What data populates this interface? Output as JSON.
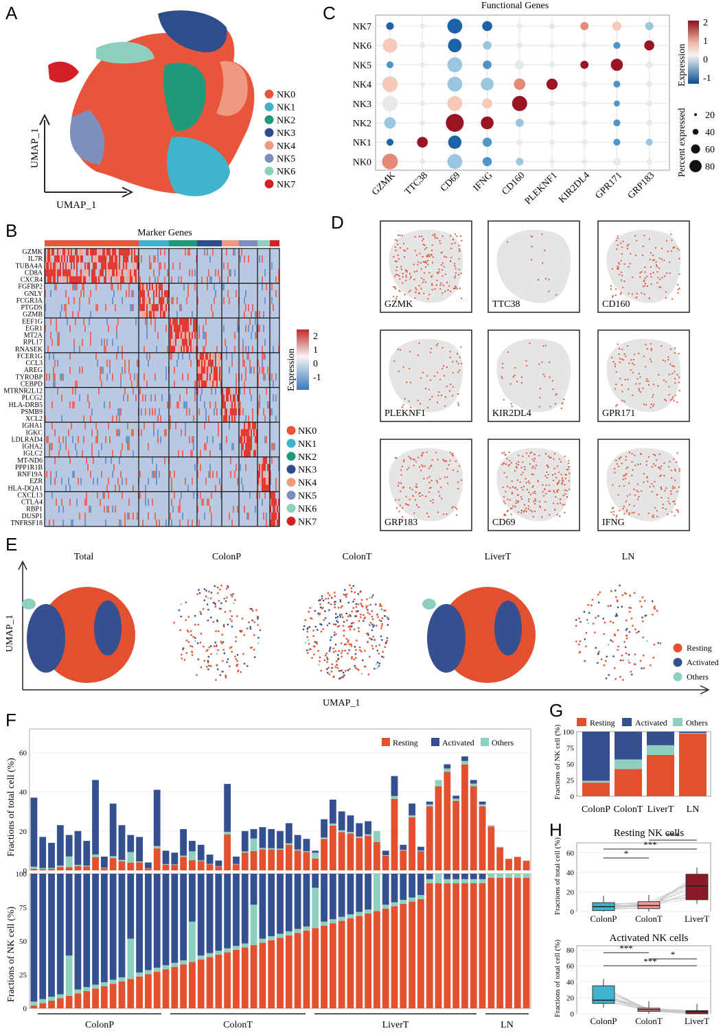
{
  "colors": {
    "NK0": "#e8553a",
    "NK1": "#3fb4cc",
    "NK2": "#1f9a7a",
    "NK3": "#2d4e8c",
    "NK4": "#ee9a80",
    "NK5": "#7c8fbf",
    "NK6": "#8dd0be",
    "NK7": "#d32026",
    "resting": "#e2502f",
    "activated": "#34508f",
    "others": "#8ed0c0"
  },
  "panels": {
    "A": "A",
    "B": "B",
    "C": "C",
    "D": "D",
    "E": "E",
    "F": "F",
    "G": "G",
    "H": "H"
  },
  "panelA": {
    "xlabel": "UMAP_1",
    "ylabel": "UMAP_1",
    "legend": [
      "NK0",
      "NK1",
      "NK2",
      "NK3",
      "NK4",
      "NK5",
      "NK6",
      "NK7"
    ]
  },
  "panelB": {
    "title": "Marker Genes",
    "genes": [
      "GZMK",
      "IL7R",
      "TUBA4A",
      "CD8A",
      "CXCR4",
      "FGFBP2",
      "GNLY",
      "FCGR3A",
      "PTGDS",
      "GZMB",
      "EEF1G",
      "EGR1",
      "MT2A",
      "RPL17",
      "RNASEK",
      "FCER1G",
      "CCL3",
      "AREG",
      "TYROBP",
      "CEBPD",
      "MTRNR2L12",
      "PLCG2",
      "HLA-DRB5",
      "PSMB9",
      "XCL2",
      "IGHA1",
      "IGKC",
      "LDLRAD4",
      "IGHA2",
      "IGLC2",
      "MT-ND6",
      "PPP1R1B",
      "RNF19A",
      "EZR",
      "HLA-DQA1",
      "CXCL13",
      "CTLA4",
      "RBP1",
      "DUSP1",
      "TNFRSF18"
    ],
    "cbar_title": "Expression",
    "cbar_ticks": [
      "2",
      "1",
      "0",
      "-1"
    ],
    "legend": [
      "NK0",
      "NK1",
      "NK2",
      "NK3",
      "NK4",
      "NK5",
      "NK6",
      "NK7"
    ]
  },
  "chart_data": [
    {
      "type": "scatter",
      "panel": "C",
      "title": "Functional Genes",
      "rows": [
        "NK7",
        "NK6",
        "NK5",
        "NK4",
        "NK3",
        "NK2",
        "NK1",
        "NK0"
      ],
      "genes": [
        "GZMK",
        "TTC38",
        "CD69",
        "IFNG",
        "CD160",
        "PLEKNF1",
        "KIR2DL4",
        "GPR171",
        "GRP183"
      ],
      "dots": [
        {
          "r": "NK7",
          "v": [
            [
              -1,
              8
            ],
            [
              0,
              2
            ],
            [
              -1,
              50
            ],
            [
              -1,
              18
            ],
            [
              0,
              4
            ],
            [
              0,
              4
            ],
            [
              1,
              10
            ],
            [
              0.3,
              14
            ],
            [
              -0.2,
              10
            ]
          ]
        },
        {
          "r": "NK6",
          "v": [
            [
              0.6,
              48
            ],
            [
              0,
              3
            ],
            [
              -0.8,
              40
            ],
            [
              -0.3,
              12
            ],
            [
              0,
              4
            ],
            [
              0,
              3
            ],
            [
              0,
              3
            ],
            [
              -0.5,
              6
            ],
            [
              2,
              18
            ]
          ]
        },
        {
          "r": "NK5",
          "v": [
            [
              -0.7,
              6
            ],
            [
              0,
              2
            ],
            [
              -0.4,
              50
            ],
            [
              -0.6,
              12
            ],
            [
              0.1,
              14
            ],
            [
              0,
              4
            ],
            [
              2,
              10
            ],
            [
              2,
              30
            ],
            [
              0,
              6
            ]
          ]
        },
        {
          "r": "NK4",
          "v": [
            [
              0.4,
              56
            ],
            [
              0,
              2
            ],
            [
              -0.3,
              50
            ],
            [
              -0.2,
              34
            ],
            [
              0.8,
              26
            ],
            [
              2,
              24
            ],
            [
              0,
              4
            ],
            [
              -0.6,
              6
            ],
            [
              0,
              4
            ]
          ]
        },
        {
          "r": "NK3",
          "v": [
            [
              0,
              52
            ],
            [
              0,
              2
            ],
            [
              0.3,
              50
            ],
            [
              0.6,
              18
            ],
            [
              2,
              52
            ],
            [
              0,
              3
            ],
            [
              0,
              3
            ],
            [
              -0.5,
              4
            ],
            [
              0,
              4
            ]
          ]
        },
        {
          "r": "NK2",
          "v": [
            [
              -0.3,
              26
            ],
            [
              0,
              2
            ],
            [
              2.2,
              78
            ],
            [
              2,
              34
            ],
            [
              -0.2,
              10
            ],
            [
              0,
              4
            ],
            [
              0,
              3
            ],
            [
              -0.5,
              6
            ],
            [
              0,
              4
            ]
          ]
        },
        {
          "r": "NK1",
          "v": [
            [
              -0.8,
              6
            ],
            [
              2,
              22
            ],
            [
              -0.8,
              38
            ],
            [
              -0.5,
              14
            ],
            [
              0,
              4
            ],
            [
              0.2,
              3
            ],
            [
              0,
              3
            ],
            [
              -0.7,
              6
            ],
            [
              -0.4,
              6
            ]
          ]
        },
        {
          "r": "NK0",
          "v": [
            [
              1,
              58
            ],
            [
              0,
              3
            ],
            [
              -0.4,
              50
            ],
            [
              -0.6,
              14
            ],
            [
              -0.2,
              8
            ],
            [
              0,
              3
            ],
            [
              0,
              3
            ],
            [
              0,
              8
            ],
            [
              0,
              4
            ]
          ]
        }
      ],
      "expr_ticks": [
        "2",
        "1",
        "0",
        "-1"
      ],
      "expr_label": "Expression",
      "size_label": "Percent expressed",
      "size_ticks": [
        "20",
        "40",
        "60",
        "80"
      ]
    },
    {
      "type": "bar",
      "panel": "G",
      "ylabel": "Fractions of NK cell (%)",
      "categories": [
        "ColonP",
        "ColonT",
        "LiverT",
        "LN"
      ],
      "series": [
        {
          "name": "Resting",
          "values": [
            21,
            42,
            64,
            97
          ]
        },
        {
          "name": "Activated",
          "values": [
            76,
            43,
            21,
            2
          ]
        },
        {
          "name": "Others",
          "values": [
            3,
            15,
            15,
            1
          ]
        }
      ],
      "yticks": [
        "0",
        "25",
        "50",
        "75",
        "100"
      ],
      "legend": [
        "Resting",
        "Activated",
        "Others"
      ]
    },
    {
      "type": "bar",
      "panel": "F",
      "ylabel_top": "Fractions of total cell (%)",
      "ylabel_bottom": "Fractions of NK cell (%)",
      "yticks_top": [
        "0",
        "20",
        "40",
        "60"
      ],
      "yticks_bottom": [
        "0",
        "25",
        "50",
        "75",
        "100"
      ],
      "legend": [
        "Resting",
        "Activated",
        "Others"
      ],
      "groups": [
        {
          "name": "ColonP",
          "n": 17
        },
        {
          "name": "ColonT",
          "n": 17
        },
        {
          "name": "LiverT",
          "n": 18
        },
        {
          "name": "LN",
          "n": 5
        }
      ],
      "totals": [
        37,
        17,
        14,
        23,
        18,
        20,
        15,
        46,
        7,
        34,
        23,
        18,
        17,
        4,
        41,
        10,
        9
      ],
      "colonT_totals": [
        21,
        15,
        13,
        8,
        5,
        44,
        7,
        20,
        21,
        22,
        21,
        20,
        24,
        18,
        16,
        10,
        26
      ],
      "liverT_totals": [
        36,
        30,
        28,
        24,
        25,
        20,
        10,
        48,
        13,
        34,
        12,
        35,
        46,
        54,
        38,
        58,
        46,
        35
      ],
      "ln_totals": [
        23,
        12,
        6,
        7,
        5
      ]
    },
    {
      "type": "box",
      "panel": "H1",
      "title": "Resting NK cells",
      "ylabel": "Fractions of total cell (%)",
      "categories": [
        "ColonP",
        "ColonT",
        "LiverT"
      ],
      "yticks": [
        "0",
        "20",
        "40",
        "60"
      ],
      "medians": [
        5,
        6,
        26
      ],
      "q1": [
        1,
        3,
        12
      ],
      "q3": [
        9,
        10,
        38
      ],
      "sig": [
        "*",
        "***",
        "***"
      ]
    },
    {
      "type": "box",
      "panel": "H2",
      "title": "Activated NK cells",
      "ylabel": "Fractions of total cell (%)",
      "categories": [
        "ColonP",
        "ColonT",
        "LiverT"
      ],
      "yticks": [
        "0",
        "20",
        "40",
        "60",
        "80"
      ],
      "medians": [
        17,
        5,
        3
      ],
      "q1": [
        13,
        3,
        0
      ],
      "q3": [
        35,
        7,
        4
      ],
      "sig": [
        "***",
        "*",
        "***"
      ]
    }
  ],
  "panelD": {
    "genes": [
      "GZMK",
      "TTC38",
      "CD160",
      "PLEKNF1",
      "KIR2DL4",
      "GPR171",
      "GRP183",
      "CD69",
      "IFNG"
    ]
  },
  "panelE": {
    "titles": [
      "Total",
      "ColonP",
      "ColonT",
      "LiverT",
      "LN"
    ],
    "xlabel": "UMAP_1",
    "ylabel": "UMAP_1",
    "legend": [
      "Resting",
      "Activated",
      "Others"
    ]
  },
  "panelF": {
    "groups": [
      "ColonP",
      "ColonT",
      "LiverT",
      "LN"
    ]
  }
}
